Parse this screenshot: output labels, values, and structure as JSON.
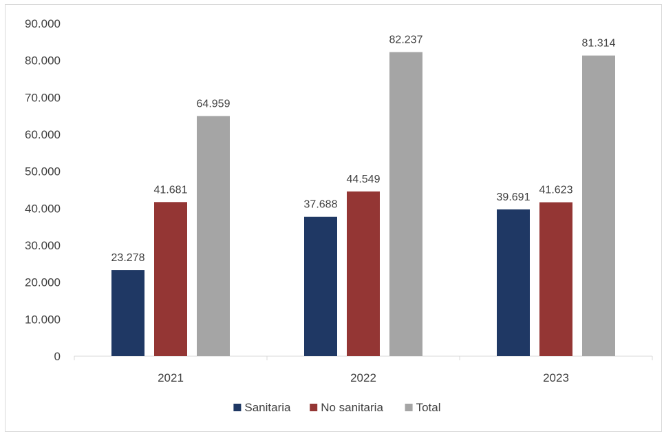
{
  "chart_data": {
    "type": "bar",
    "title": "",
    "xlabel": "",
    "ylabel": "",
    "categories": [
      "2021",
      "2022",
      "2023"
    ],
    "series": [
      {
        "name": "Sanitaria",
        "values": [
          23278,
          37688,
          39691
        ],
        "labels": [
          "23.278",
          "37.688",
          "39.691"
        ],
        "color": "#1f3864"
      },
      {
        "name": "No sanitaria",
        "values": [
          41681,
          44549,
          41623
        ],
        "labels": [
          "41.681",
          "44.549",
          "41.623"
        ],
        "color": "#943634"
      },
      {
        "name": "Total",
        "values": [
          64959,
          82237,
          81314
        ],
        "labels": [
          "64.959",
          "82.237",
          "81.314"
        ],
        "color": "#a5a5a5"
      }
    ],
    "ylim": [
      0,
      90000
    ],
    "yticks": [
      0,
      10000,
      20000,
      30000,
      40000,
      50000,
      60000,
      70000,
      80000,
      90000
    ],
    "ytick_labels": [
      "0",
      "10.000",
      "20.000",
      "30.000",
      "40.000",
      "50.000",
      "60.000",
      "70.000",
      "80.000",
      "90.000"
    ],
    "grid": false,
    "legend_position": "bottom"
  }
}
